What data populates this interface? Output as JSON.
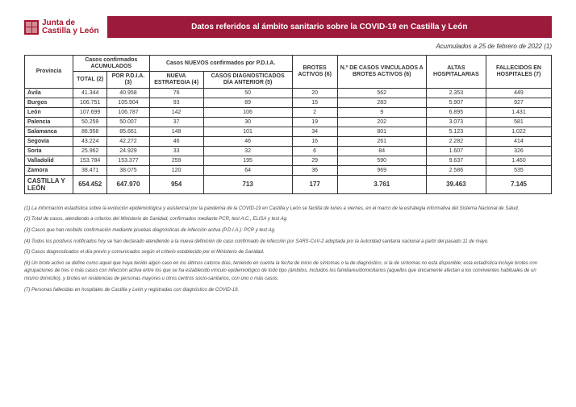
{
  "logo_text_line1": "Junta de",
  "logo_text_line2": "Castilla y León",
  "title": "Datos referidos al ámbito sanitario sobre la COVID-19 en Castilla y León",
  "date_line": "Acumulados a 25 de febrero de 2022 (1)",
  "group_headers": {
    "acumulados": "Casos confirmados ACUMULADOS",
    "nuevos": "Casos NUEVOS confirmados por P.D.I.A."
  },
  "col_headers": {
    "provincia": "Provincia",
    "total": "TOTAL (2)",
    "por_pdia": "POR P.D.I.A. (3)",
    "nueva_estrat": "NUEVA ESTRATEGIA (4)",
    "diag_ant": "CASOS DIAGNOSTICADOS DÍA ANTERIOR (5)",
    "brotes": "BROTES ACTIVOS (6)",
    "vinculados": "N.º DE CASOS VINCULADOS A BROTES ACTIVOS (6)",
    "altas": "ALTAS HOSPITALARIAS",
    "fallecidos": "FALLECIDOS EN HOSPITALES (7)"
  },
  "rows": [
    {
      "prov": "Ávila",
      "c": [
        "41.344",
        "40.958",
        "76",
        "50",
        "20",
        "562",
        "2.353",
        "449"
      ]
    },
    {
      "prov": "Burgos",
      "c": [
        "106.751",
        "105.904",
        "93",
        "89",
        "15",
        "283",
        "5.907",
        "927"
      ]
    },
    {
      "prov": "León",
      "c": [
        "107.699",
        "106.787",
        "142",
        "106",
        "2",
        "9",
        "6.895",
        "1.431"
      ]
    },
    {
      "prov": "Palencia",
      "c": [
        "50.259",
        "50.007",
        "37",
        "30",
        "19",
        "202",
        "3.073",
        "581"
      ]
    },
    {
      "prov": "Salamanca",
      "c": [
        "86.958",
        "85.661",
        "148",
        "101",
        "34",
        "801",
        "5.123",
        "1.022"
      ]
    },
    {
      "prov": "Segovia",
      "c": [
        "43.224",
        "42.272",
        "46",
        "46",
        "16",
        "261",
        "2.282",
        "414"
      ]
    },
    {
      "prov": "Soria",
      "c": [
        "25.962",
        "24.929",
        "33",
        "32",
        "6",
        "84",
        "1.607",
        "326"
      ]
    },
    {
      "prov": "Valladolid",
      "c": [
        "153.784",
        "153.377",
        "259",
        "195",
        "29",
        "590",
        "9.637",
        "1.460"
      ]
    },
    {
      "prov": "Zamora",
      "c": [
        "38.471",
        "38.075",
        "120",
        "64",
        "36",
        "969",
        "2.586",
        "535"
      ]
    }
  ],
  "total_row": {
    "prov": "CASTILLA Y LEÓN",
    "c": [
      "654.452",
      "647.970",
      "954",
      "713",
      "177",
      "3.761",
      "39.463",
      "7.145"
    ]
  },
  "footnotes": [
    "(1) La información estadística sobre la evolución epidemiológica y asistencial por la pandemia de la COVID-19 en Castilla y León se facilita de lunes a viernes, en el marco de la estrategia informativa del Sistema Nacional de Salud.",
    "(2) Total de casos, atendiendo a criterios del Ministerio de Sanidad, confirmados mediante PCR, test A.C., ELISA y test Ag.",
    "(3) Casos que han recibido confirmación mediante pruebas diagnósticas de infección activa (P.D.I.A.): PCR y test Ag.",
    "(4) Todos los positivos notificados hoy se han declarado atendiendo a la nueva definición de caso confirmado de infección por SARS-CoV-2 adoptada por la Autoridad sanitaria nacional a partir del pasado 11 de mayo.",
    "(5) Casos diagnosticados el día previo y comunicados según el criterio establecido por el Ministerio de Sanidad.",
    "(6) Un brote activo se define como aquel que haya tenido algún caso en los últimos catorce días, teniendo en cuenta la fecha de inicio de síntomas o la de diagnóstico, si la de síntomas no está disponible; esta estadística incluye brotes con agrupaciones de tres o más casos con infección activa entre los que se ha establecido vínculo epidemiológico de todo tipo (ámbitos, incluidos los familiares/domiciliarios (aquellos que únicamente afectan a los convivientes habituales de un mismo domicilio), y brotes en residencias de personas mayores u otros centros socio-sanitarios, con uno o más casos.",
    "(7) Personas fallecidas en hospitales de Castilla y León y registradas con diagnóstico de COVID-19."
  ],
  "colors": {
    "brand": "#9c1a3a",
    "border": "#333333"
  }
}
